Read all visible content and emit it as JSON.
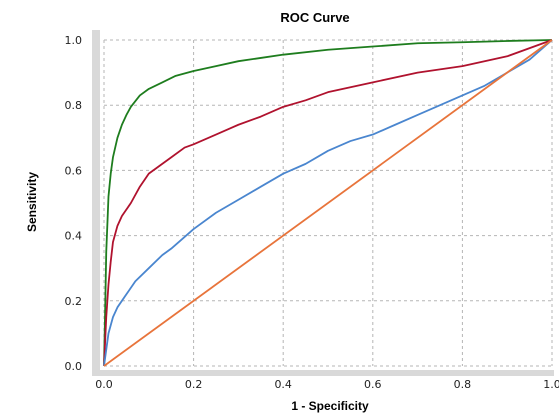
{
  "chart_data": {
    "type": "line",
    "title": "ROC Curve",
    "xlabel": "1 - Specificity",
    "ylabel": "Sensitivity",
    "xlim": [
      0.0,
      1.0
    ],
    "ylim": [
      0.0,
      1.0
    ],
    "xticks": [
      "0.0",
      "0.2",
      "0.4",
      "0.6",
      "0.8",
      "1.0"
    ],
    "yticks": [
      "0.0",
      "0.2",
      "0.4",
      "0.6",
      "0.8",
      "1.0"
    ],
    "grid": true,
    "series": [
      {
        "color": "#1e7d1e",
        "x": [
          0.0,
          0.003,
          0.005,
          0.008,
          0.01,
          0.015,
          0.02,
          0.03,
          0.04,
          0.05,
          0.06,
          0.08,
          0.1,
          0.13,
          0.16,
          0.2,
          0.25,
          0.3,
          0.35,
          0.4,
          0.5,
          0.6,
          0.7,
          0.8,
          0.9,
          1.0
        ],
        "y": [
          0.0,
          0.2,
          0.35,
          0.45,
          0.52,
          0.59,
          0.64,
          0.7,
          0.74,
          0.77,
          0.795,
          0.83,
          0.85,
          0.87,
          0.89,
          0.905,
          0.92,
          0.935,
          0.945,
          0.955,
          0.97,
          0.98,
          0.99,
          0.993,
          0.997,
          1.0
        ]
      },
      {
        "color": "#b0122e",
        "x": [
          0.0,
          0.005,
          0.01,
          0.015,
          0.02,
          0.03,
          0.04,
          0.06,
          0.08,
          0.1,
          0.12,
          0.15,
          0.18,
          0.2,
          0.25,
          0.3,
          0.35,
          0.4,
          0.45,
          0.5,
          0.6,
          0.7,
          0.8,
          0.9,
          1.0
        ],
        "y": [
          0.0,
          0.15,
          0.25,
          0.32,
          0.38,
          0.43,
          0.46,
          0.5,
          0.55,
          0.59,
          0.61,
          0.64,
          0.67,
          0.68,
          0.71,
          0.74,
          0.765,
          0.795,
          0.815,
          0.84,
          0.87,
          0.9,
          0.92,
          0.95,
          1.0
        ]
      },
      {
        "color": "#4a86cf",
        "x": [
          0.0,
          0.005,
          0.01,
          0.02,
          0.03,
          0.05,
          0.07,
          0.1,
          0.13,
          0.15,
          0.2,
          0.25,
          0.3,
          0.35,
          0.4,
          0.45,
          0.5,
          0.55,
          0.6,
          0.65,
          0.7,
          0.75,
          0.8,
          0.85,
          0.9,
          0.95,
          1.0
        ],
        "y": [
          0.0,
          0.05,
          0.1,
          0.15,
          0.18,
          0.22,
          0.26,
          0.3,
          0.34,
          0.36,
          0.42,
          0.47,
          0.51,
          0.55,
          0.59,
          0.62,
          0.66,
          0.69,
          0.71,
          0.74,
          0.77,
          0.8,
          0.83,
          0.86,
          0.9,
          0.94,
          1.0
        ]
      },
      {
        "color": "#e8743b",
        "x": [
          0.0,
          1.0
        ],
        "y": [
          0.0,
          1.0
        ]
      }
    ]
  }
}
